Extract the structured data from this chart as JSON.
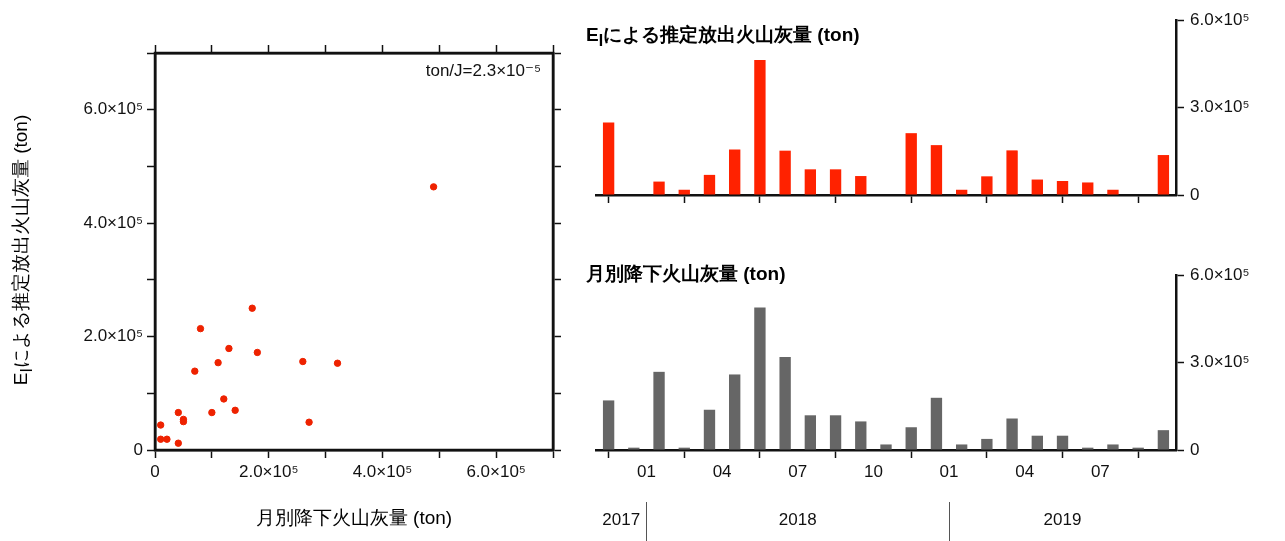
{
  "chart_data": [
    {
      "type": "scatter",
      "xlabel": "月別降下火山灰量 (ton)",
      "ylabel": "E$_{I}$による推定放出火山灰量 (ton)",
      "annotations": [
        "ton/J=2.3×10⁻⁵"
      ],
      "marker": "circle",
      "grid": false,
      "legend": false,
      "xlim": [
        0,
        700000
      ],
      "ylim": [
        0,
        700000
      ],
      "xticks": [
        {
          "value": 0,
          "label": "0"
        },
        {
          "value": 100000,
          "label": null
        },
        {
          "value": 200000,
          "label": "2.0×10⁵"
        },
        {
          "value": 300000,
          "label": null
        },
        {
          "value": 400000,
          "label": "4.0×10⁵"
        },
        {
          "value": 500000,
          "label": null
        },
        {
          "value": 600000,
          "label": "6.0×10⁵"
        },
        {
          "value": 700000,
          "label": null
        }
      ],
      "yticks": [
        {
          "value": 0,
          "label": "0"
        },
        {
          "value": 100000,
          "label": null
        },
        {
          "value": 200000,
          "label": "2.0×10⁵"
        },
        {
          "value": 300000,
          "label": null
        },
        {
          "value": 400000,
          "label": "4.0×10⁵"
        },
        {
          "value": 500000,
          "label": null
        },
        {
          "value": 600000,
          "label": "6.0×10⁵"
        },
        {
          "value": 700000,
          "label": null
        }
      ],
      "series": [
        {
          "color": "#ee2200",
          "x": [
            490000,
            171000,
            80000,
            130000,
            180000,
            111000,
            70000,
            260000,
            321000,
            121000,
            41000,
            100000,
            141000,
            50000,
            50000,
            271000,
            10000,
            10000,
            21000,
            41000
          ],
          "values": [
            464000,
            250000,
            214000,
            179000,
            172000,
            154000,
            139000,
            156000,
            153000,
            90000,
            66000,
            66000,
            70000,
            54000,
            50000,
            49000,
            44000,
            19000,
            19000,
            12000
          ]
        }
      ]
    },
    {
      "type": "bar",
      "title": "E$_{I}$による推定放出火山灰量 (ton)",
      "grid": false,
      "legend": false,
      "tick_labels": "y",
      "x": [
        "2017-11-16",
        "2017-12-16",
        "2018-01-16",
        "2018-02-16",
        "2018-03-16",
        "2018-04-16",
        "2018-05-16",
        "2018-06-16",
        "2018-07-16",
        "2018-08-16",
        "2018-09-16",
        "2018-10-16",
        "2018-11-16",
        "2018-12-16",
        "2019-01-16",
        "2019-02-16",
        "2019-03-16",
        "2019-04-16",
        "2019-05-16",
        "2019-06-16",
        "2019-07-16",
        "2019-08-16",
        "2019-09-16"
      ],
      "xlim": [
        "2017-11",
        "2019-10"
      ],
      "xticks": [
        {
          "value": "2018-01",
          "label": null
        },
        {
          "value": "2018-04",
          "label": null
        },
        {
          "value": "2018-07",
          "label": null
        },
        {
          "value": "2018-10",
          "label": null
        },
        {
          "value": "2019-01",
          "label": null
        },
        {
          "value": "2019-04",
          "label": null
        },
        {
          "value": "2019-07",
          "label": null
        },
        {
          "value": "2019-10",
          "label": null
        }
      ],
      "ylim": [
        0,
        600000
      ],
      "yticks": [
        0,
        {
          "value": 300000,
          "label": "3.0×10⁵"
        },
        {
          "value": 600000,
          "label": "6.0×10⁵"
        }
      ],
      "series": [
        {
          "color": "#ff2200",
          "values": [
            249000,
            0,
            46000,
            18000,
            69000,
            156000,
            463000,
            152000,
            88000,
            88000,
            65000,
            0,
            212000,
            171000,
            18000,
            64000,
            153000,
            53000,
            48000,
            43000,
            18000,
            0,
            137000
          ]
        }
      ]
    },
    {
      "type": "bar",
      "title": "月別降下火山灰量 (ton)",
      "grid": false,
      "legend": false,
      "x": [
        "2017-11-16",
        "2017-12-16",
        "2018-01-16",
        "2018-02-16",
        "2018-03-16",
        "2018-04-16",
        "2018-05-16",
        "2018-06-16",
        "2018-07-16",
        "2018-08-16",
        "2018-09-16",
        "2018-10-16",
        "2018-11-16",
        "2018-12-16",
        "2019-01-16",
        "2019-02-16",
        "2019-03-16",
        "2019-04-16",
        "2019-05-16",
        "2019-06-16",
        "2019-07-16",
        "2019-08-16",
        "2019-09-16"
      ],
      "xlim": [
        "2017-11",
        "2019-10"
      ],
      "xticks": [
        {
          "value": "2018-01",
          "label": "01"
        },
        {
          "value": "2018-04",
          "label": "04"
        },
        {
          "value": "2018-07",
          "label": "07"
        },
        {
          "value": "2018-10",
          "label": "10"
        },
        {
          "value": "2019-01",
          "label": "01"
        },
        {
          "value": "2019-04",
          "label": "04"
        },
        {
          "value": "2019-07",
          "label": "07"
        },
        {
          "value": "2019-10",
          "label": null
        }
      ],
      "ylim": [
        0,
        600000
      ],
      "yticks": [
        0,
        {
          "value": 300000,
          "label": "3.0×10⁵"
        },
        {
          "value": 600000,
          "label": "6.0×10⁵"
        }
      ],
      "annotations": [
        "2017",
        "2018",
        "2019"
      ],
      "series": [
        {
          "color": "#666666",
          "values": [
            170000,
            8000,
            268000,
            8000,
            138000,
            259000,
            489000,
            319000,
            119000,
            119000,
            98000,
            19000,
            78000,
            179000,
            19000,
            38000,
            108000,
            49000,
            49000,
            8000,
            19000,
            8000,
            68000
          ]
        }
      ]
    }
  ]
}
